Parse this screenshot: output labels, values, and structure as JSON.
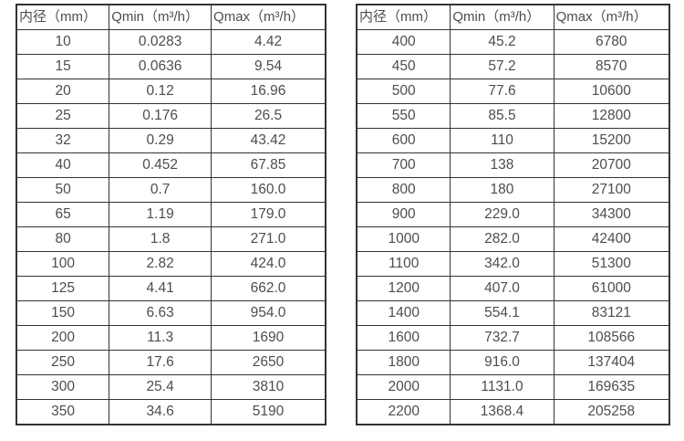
{
  "colors": {
    "background": "#ffffff",
    "border": "#333333",
    "text": "#4d4d4d"
  },
  "chart_data": [
    {
      "type": "table",
      "title": "",
      "columns": [
        "内径（mm）",
        "Qmin（m³/h）",
        "Qmax（m³/h）"
      ],
      "rows": [
        [
          "10",
          "0.0283",
          "4.42"
        ],
        [
          "15",
          "0.0636",
          "9.54"
        ],
        [
          "20",
          "0.12",
          "16.96"
        ],
        [
          "25",
          "0.176",
          "26.5"
        ],
        [
          "32",
          "0.29",
          "43.42"
        ],
        [
          "40",
          "0.452",
          "67.85"
        ],
        [
          "50",
          "0.7",
          "160.0"
        ],
        [
          "65",
          "1.19",
          "179.0"
        ],
        [
          "80",
          "1.8",
          "271.0"
        ],
        [
          "100",
          "2.82",
          "424.0"
        ],
        [
          "125",
          "4.41",
          "662.0"
        ],
        [
          "150",
          "6.63",
          "954.0"
        ],
        [
          "200",
          "11.3",
          "1690"
        ],
        [
          "250",
          "17.6",
          "2650"
        ],
        [
          "300",
          "25.4",
          "3810"
        ],
        [
          "350",
          "34.6",
          "5190"
        ]
      ]
    },
    {
      "type": "table",
      "title": "",
      "columns": [
        "内径（mm）",
        "Qmin（m³/h）",
        "Qmax（m³/h）"
      ],
      "rows": [
        [
          "400",
          "45.2",
          "6780"
        ],
        [
          "450",
          "57.2",
          "8570"
        ],
        [
          "500",
          "77.6",
          "10600"
        ],
        [
          "550",
          "85.5",
          "12800"
        ],
        [
          "600",
          "110",
          "15200"
        ],
        [
          "700",
          "138",
          "20700"
        ],
        [
          "800",
          "180",
          "27100"
        ],
        [
          "900",
          "229.0",
          "34300"
        ],
        [
          "1000",
          "282.0",
          "42400"
        ],
        [
          "1100",
          "342.0",
          "51300"
        ],
        [
          "1200",
          "407.0",
          "61000"
        ],
        [
          "1400",
          "554.1",
          "83121"
        ],
        [
          "1600",
          "732.7",
          "108566"
        ],
        [
          "1800",
          "916.0",
          "137404"
        ],
        [
          "2000",
          "1131.0",
          "169635"
        ],
        [
          "2200",
          "1368.4",
          "205258"
        ]
      ]
    }
  ]
}
